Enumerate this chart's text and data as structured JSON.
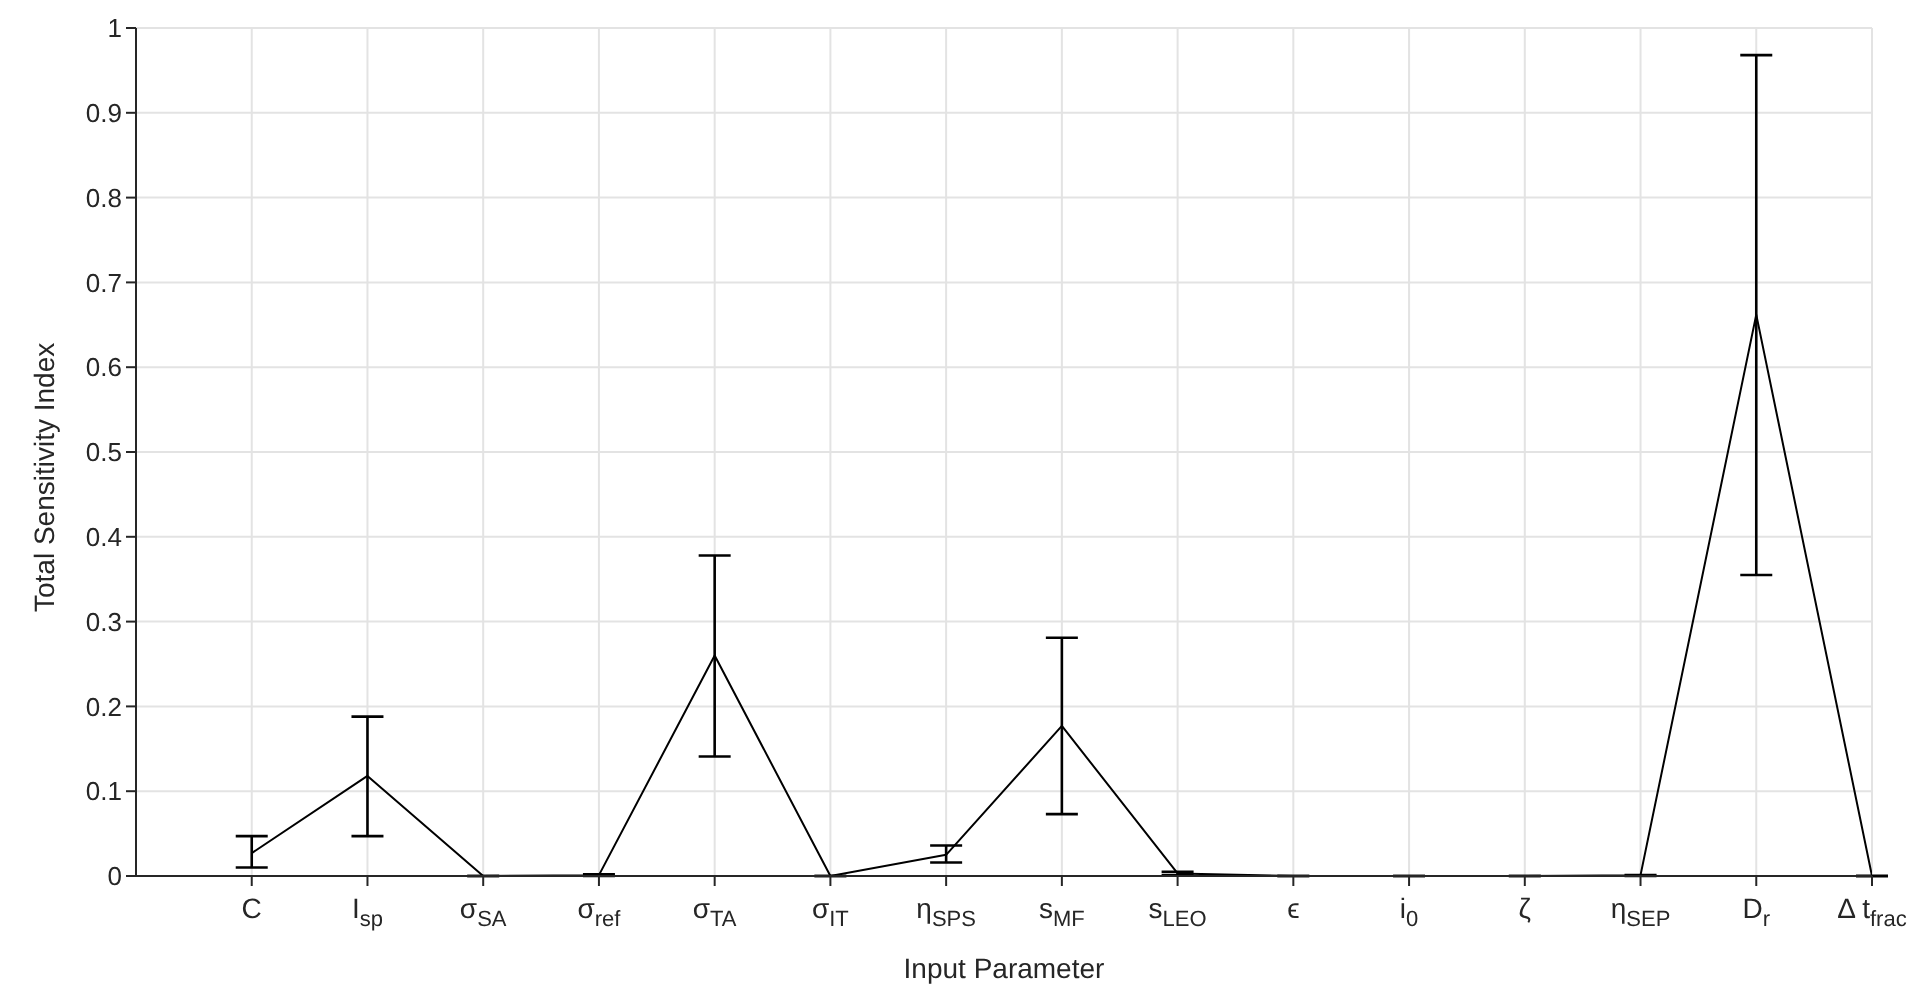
{
  "chart_data": {
    "type": "line",
    "xlabel": "Input Parameter",
    "ylabel": "Total Sensitivity Index",
    "categories": [
      "C",
      "I$_{sp}$",
      "σ$_{SA}$",
      "σ$_{ref}$",
      "σ$_{TA}$",
      "σ$_{IT}$",
      "η$_{SPS}$",
      "s$_{MF}$",
      "s$_{LEO}$",
      "ϵ",
      "i$_{0}$",
      "ζ",
      "η$_{SEP}$",
      "D$_{r}$",
      "Δ t$_{frac}$"
    ],
    "series": [
      {
        "color": "#000000",
        "values": [
          0.027,
          0.118,
          0,
          0.001,
          0.26,
          0,
          0.025,
          0.177,
          0.003,
          0,
          0,
          0,
          0.001,
          0.662,
          0
        ],
        "errors": [
          [
            0.01,
            0.047
          ],
          [
            0.047,
            0.188
          ],
          [
            0,
            0
          ],
          [
            0,
            0.002
          ],
          [
            0.141,
            0.378
          ],
          [
            0,
            0
          ],
          [
            0.016,
            0.036
          ],
          [
            0.073,
            0.281
          ],
          [
            0.001,
            0.005
          ],
          [
            0,
            0
          ],
          [
            0,
            0
          ],
          [
            0,
            0
          ],
          [
            0,
            0.001
          ],
          [
            0.355,
            0.968
          ],
          [
            0,
            0
          ]
        ]
      }
    ],
    "ylim": [
      0,
      1
    ],
    "yticks": [
      0,
      0.1,
      0.2,
      0.3,
      0.4,
      0.5,
      0.6,
      0.7,
      0.8,
      0.9,
      1
    ],
    "grid": true,
    "marker": "none",
    "line_style": "solid"
  }
}
